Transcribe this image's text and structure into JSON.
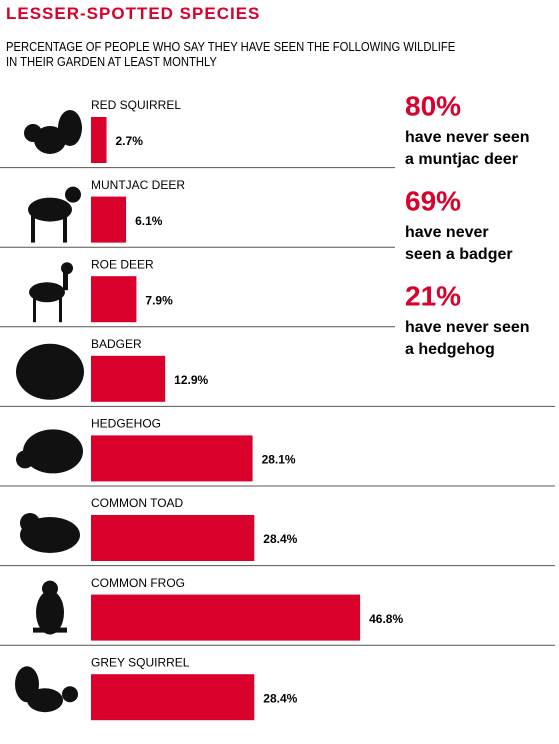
{
  "chart_data": {
    "type": "bar",
    "title": "LESSER-SPOTTED SPECIES",
    "subtitle": "PERCENTAGE OF PEOPLE WHO SAY THEY HAVE SEEN THE FOLLOWING WILDLIFE IN THEIR GARDEN AT LEAST MONTHLY",
    "categories": [
      "RED SQUIRREL",
      "MUNTJAC DEER",
      "ROE DEER",
      "BADGER",
      "HEDGEHOG",
      "COMMON TOAD",
      "COMMON FROG",
      "GREY SQUIRREL"
    ],
    "values": [
      2.7,
      6.1,
      7.9,
      12.9,
      28.1,
      28.4,
      46.8,
      28.4
    ],
    "value_labels": [
      "2.7%",
      "6.1%",
      "7.9%",
      "12.9%",
      "28.1%",
      "28.4%",
      "46.8%",
      "28.4%"
    ],
    "color": "#d9002b",
    "annotations": [
      {
        "figure": "80%",
        "lines": [
          "have never seen",
          "a muntjac deer"
        ]
      },
      {
        "figure": "69%",
        "lines": [
          "have never",
          "seen a badger"
        ]
      },
      {
        "figure": "21%",
        "lines": [
          "have never seen",
          "a hedgehog"
        ]
      }
    ]
  }
}
